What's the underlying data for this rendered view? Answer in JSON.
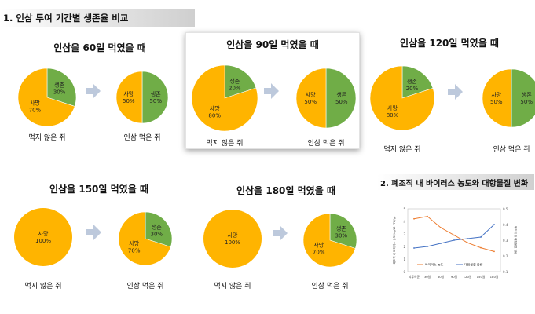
{
  "section_title": "1. 인삼 투여 기간별 생존율 비교",
  "colors": {
    "death": "#ffb400",
    "survive": "#70ad47",
    "arrow": "#bdc9dc",
    "virus": "#ed7d31",
    "immune": "#4472c4"
  },
  "death_label": "사망",
  "survive_label": "생존",
  "chart_data": [
    {
      "type": "pie",
      "title": "인삼을 60일 먹였을 때",
      "groups": [
        {
          "caption": "먹지 않은 쥐",
          "slices": [
            {
              "label": "생존",
              "value": 30,
              "text": "30%"
            },
            {
              "label": "사망",
              "value": 70,
              "text": "70%"
            }
          ]
        },
        {
          "caption": "인삼 먹은 쥐",
          "slices": [
            {
              "label": "생존",
              "value": 50,
              "text": "50%"
            },
            {
              "label": "사망",
              "value": 50,
              "text": "50%"
            }
          ]
        }
      ]
    },
    {
      "type": "pie",
      "title": "인삼을 90일 먹였을 때",
      "groups": [
        {
          "caption": "먹지 않은 쥐",
          "slices": [
            {
              "label": "생존",
              "value": 20,
              "text": "20%"
            },
            {
              "label": "사망",
              "value": 80,
              "text": "80%"
            }
          ]
        },
        {
          "caption": "인삼 먹은 쥐",
          "slices": [
            {
              "label": "생존",
              "value": 50,
              "text": "50%"
            },
            {
              "label": "사망",
              "value": 50,
              "text": "50%"
            }
          ]
        }
      ]
    },
    {
      "type": "pie",
      "title": "인삼을 120일 먹였을 때",
      "groups": [
        {
          "caption": "먹지 않은 쥐",
          "slices": [
            {
              "label": "생존",
              "value": 20,
              "text": "20%"
            },
            {
              "label": "사망",
              "value": 80,
              "text": "80%"
            }
          ]
        },
        {
          "caption": "인삼 먹은 쥐",
          "slices": [
            {
              "label": "생존",
              "value": 50,
              "text": "50%"
            },
            {
              "label": "사망",
              "value": 50,
              "text": "50%"
            }
          ]
        }
      ]
    },
    {
      "type": "pie",
      "title": "인삼을 150일 먹였을 때",
      "groups": [
        {
          "caption": "먹지 않은 쥐",
          "slices": [
            {
              "label": "생존",
              "value": 0,
              "text": ""
            },
            {
              "label": "사망",
              "value": 100,
              "text": "100%"
            }
          ]
        },
        {
          "caption": "인삼 먹은 쥐",
          "slices": [
            {
              "label": "생존",
              "value": 30,
              "text": "30%"
            },
            {
              "label": "사망",
              "value": 70,
              "text": "70%"
            }
          ]
        }
      ]
    },
    {
      "type": "pie",
      "title": "인삼을 180일 먹였을 때",
      "groups": [
        {
          "caption": "먹지 않은 쥐",
          "slices": [
            {
              "label": "생존",
              "value": 0,
              "text": ""
            },
            {
              "label": "사망",
              "value": 100,
              "text": "100%"
            }
          ]
        },
        {
          "caption": "인삼 먹은 쥐",
          "slices": [
            {
              "label": "생존",
              "value": 30,
              "text": "30%"
            },
            {
              "label": "사망",
              "value": 70,
              "text": "70%"
            }
          ]
        }
      ]
    },
    {
      "type": "line",
      "title": "2. 폐조직 내 바이러스 농도와 대항물질 변화",
      "categories": [
        "피투여군",
        "30일",
        "60일",
        "90일",
        "120일",
        "150일",
        "180일"
      ],
      "series": [
        {
          "name": "바이러스 농도",
          "axis": "left",
          "values": [
            4.2,
            4.4,
            3.5,
            2.9,
            2.3,
            1.9,
            1.6
          ]
        },
        {
          "name": "대항물질 함량",
          "axis": "right",
          "values": [
            0.25,
            0.26,
            0.28,
            0.3,
            0.31,
            0.32,
            0.4
          ]
        }
      ],
      "ylim": [
        0,
        5
      ],
      "y2lim": [
        0.1,
        0.5
      ],
      "yticks": [
        "0",
        "1",
        "2",
        "3",
        "4",
        "5"
      ],
      "y2ticks": [
        "0.1",
        "0.2",
        "0.3",
        "0.4",
        "0.5"
      ],
      "ylabel": "폐조직 내 바이러스 농도(log10 PFU/g)",
      "y2label": "폐조직 내 대항물질 함량",
      "legend": "bottom"
    }
  ]
}
